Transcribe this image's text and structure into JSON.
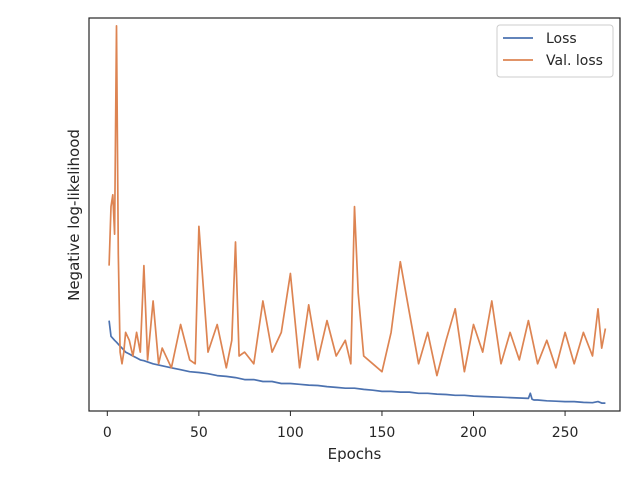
{
  "chart_data": {
    "type": "line",
    "xlabel": "Epochs",
    "ylabel": "Negative log-likelihood",
    "xlim": [
      -10,
      280
    ],
    "ylim": [
      0.0,
      1.0
    ],
    "y_ticks_visible": false,
    "x_ticks": [
      0,
      50,
      100,
      150,
      200,
      250
    ],
    "x_tick_labels": [
      "0",
      "50",
      "100",
      "150",
      "200",
      "250"
    ],
    "grid": false,
    "legend": {
      "placement": "top-right",
      "entries": [
        "Loss",
        "Val. loss"
      ]
    },
    "series": [
      {
        "name": "Loss",
        "color": "#4c72b0",
        "x": [
          1,
          2,
          3,
          4,
          5,
          6,
          7,
          8,
          9,
          10,
          12,
          14,
          16,
          18,
          20,
          25,
          30,
          35,
          40,
          45,
          50,
          55,
          60,
          65,
          70,
          75,
          80,
          85,
          90,
          95,
          100,
          105,
          110,
          115,
          120,
          125,
          130,
          135,
          140,
          145,
          150,
          155,
          160,
          165,
          170,
          175,
          180,
          185,
          190,
          195,
          200,
          205,
          210,
          215,
          220,
          225,
          230,
          231,
          232,
          233,
          235,
          240,
          245,
          250,
          255,
          260,
          265,
          268,
          270,
          272
        ],
        "y": [
          0.23,
          0.19,
          0.185,
          0.18,
          0.175,
          0.17,
          0.165,
          0.16,
          0.155,
          0.15,
          0.145,
          0.14,
          0.135,
          0.13,
          0.128,
          0.12,
          0.115,
          0.11,
          0.105,
          0.1,
          0.098,
          0.095,
          0.09,
          0.088,
          0.085,
          0.08,
          0.08,
          0.075,
          0.075,
          0.07,
          0.07,
          0.068,
          0.066,
          0.065,
          0.062,
          0.06,
          0.058,
          0.058,
          0.055,
          0.053,
          0.05,
          0.05,
          0.048,
          0.048,
          0.045,
          0.045,
          0.043,
          0.042,
          0.04,
          0.04,
          0.038,
          0.037,
          0.036,
          0.035,
          0.034,
          0.033,
          0.032,
          0.045,
          0.03,
          0.028,
          0.028,
          0.026,
          0.025,
          0.024,
          0.024,
          0.022,
          0.021,
          0.024,
          0.02,
          0.02
        ]
      },
      {
        "name": "Val. loss",
        "color": "#dd8452",
        "x": [
          1,
          2,
          3,
          4,
          5,
          6,
          7,
          8,
          9,
          10,
          12,
          14,
          16,
          18,
          20,
          22,
          25,
          28,
          30,
          35,
          40,
          45,
          48,
          50,
          55,
          60,
          65,
          68,
          70,
          72,
          75,
          80,
          85,
          90,
          95,
          100,
          105,
          110,
          115,
          120,
          125,
          130,
          133,
          135,
          137,
          140,
          145,
          150,
          155,
          160,
          165,
          170,
          175,
          180,
          185,
          190,
          195,
          200,
          205,
          210,
          215,
          220,
          225,
          230,
          235,
          240,
          245,
          250,
          255,
          260,
          265,
          268,
          270,
          272
        ],
        "y": [
          0.37,
          0.52,
          0.55,
          0.45,
          0.98,
          0.4,
          0.15,
          0.12,
          0.15,
          0.2,
          0.18,
          0.14,
          0.2,
          0.15,
          0.37,
          0.13,
          0.28,
          0.12,
          0.16,
          0.11,
          0.22,
          0.13,
          0.12,
          0.47,
          0.15,
          0.22,
          0.11,
          0.18,
          0.43,
          0.14,
          0.15,
          0.12,
          0.28,
          0.15,
          0.2,
          0.35,
          0.11,
          0.27,
          0.13,
          0.23,
          0.14,
          0.18,
          0.12,
          0.52,
          0.3,
          0.14,
          0.12,
          0.1,
          0.2,
          0.38,
          0.25,
          0.12,
          0.2,
          0.09,
          0.18,
          0.26,
          0.1,
          0.22,
          0.15,
          0.28,
          0.12,
          0.2,
          0.13,
          0.23,
          0.12,
          0.18,
          0.11,
          0.2,
          0.12,
          0.2,
          0.14,
          0.26,
          0.16,
          0.21
        ]
      }
    ]
  }
}
